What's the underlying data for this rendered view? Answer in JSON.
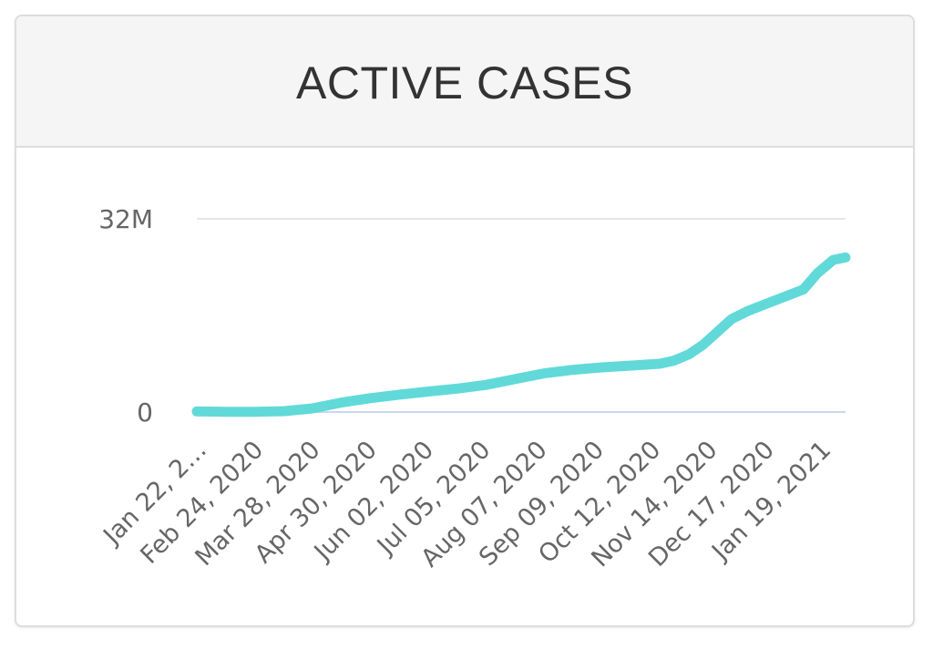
{
  "card": {
    "title": "ACTIVE CASES"
  },
  "colors": {
    "line": "#62d9d9",
    "baseline": "#ccd6eb",
    "grid": "#e6e6e6",
    "tick_text": "#666666",
    "header_bg": "#f5f5f5"
  },
  "chart_data": {
    "type": "area",
    "title": "ACTIVE CASES",
    "xlabel": "",
    "ylabel": "",
    "y_tick_labels": [
      "0",
      "32M"
    ],
    "y_ticks": [
      0,
      32000000
    ],
    "ylim": [
      0,
      32000000
    ],
    "x_tick_labels": [
      "Jan 22, 2…",
      "Feb 24, 2020",
      "Mar 28, 2020",
      "Apr 30, 2020",
      "Jun 02, 2020",
      "Jul 05, 2020",
      "Aug 07, 2020",
      "Sep 09, 2020",
      "Oct 12, 2020",
      "Nov 14, 2020",
      "Dec 17, 2020",
      "Jan 19, 2021"
    ],
    "grid": true,
    "legend": "none",
    "series": [
      {
        "x": [
          "2020-01-22",
          "2020-02-08",
          "2020-02-24",
          "2020-03-12",
          "2020-03-28",
          "2020-04-14",
          "2020-04-30",
          "2020-05-17",
          "2020-06-02",
          "2020-06-19",
          "2020-07-05",
          "2020-07-22",
          "2020-08-07",
          "2020-08-24",
          "2020-09-09",
          "2020-09-26",
          "2020-10-12",
          "2020-10-20",
          "2020-10-29",
          "2020-11-06",
          "2020-11-14",
          "2020-11-22",
          "2020-12-01",
          "2020-12-09",
          "2020-12-17",
          "2020-12-25",
          "2021-01-02",
          "2021-01-10",
          "2021-01-19",
          "2021-01-26"
        ],
        "values": [
          100000,
          50000,
          50000,
          150000,
          600000,
          1600000,
          2300000,
          2900000,
          3400000,
          3900000,
          4500000,
          5500000,
          6400000,
          7000000,
          7400000,
          7700000,
          8000000,
          8500000,
          9600000,
          11200000,
          13300000,
          15400000,
          16700000,
          17600000,
          18500000,
          19400000,
          20300000,
          23000000,
          25200000,
          25600000
        ]
      }
    ]
  }
}
